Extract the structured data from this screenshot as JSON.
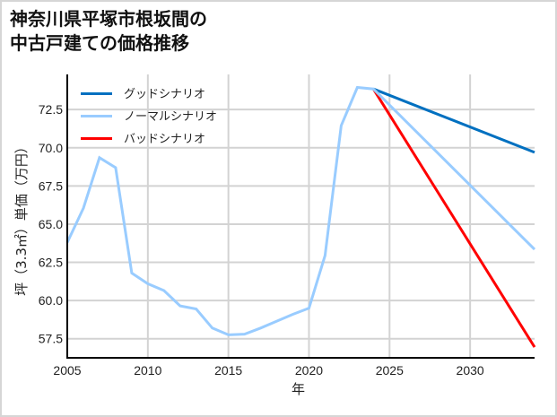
{
  "figure": {
    "title_lines": [
      "神奈川県平塚市根坂間の",
      "中古戸建ての価格推移"
    ]
  },
  "chart_data": {
    "type": "line",
    "title": "神奈川県平塚市根坂間の中古戸建ての価格推移",
    "xlabel": "年",
    "ylabel": "坪（3.3㎡）単価（万円）",
    "xlim": [
      2005,
      2034
    ],
    "ylim": [
      56.25,
      74.8
    ],
    "x_ticks": [
      2005,
      2010,
      2015,
      2020,
      2025,
      2030
    ],
    "x_tick_labels": [
      "2005",
      "2010",
      "2015",
      "2020",
      "2025",
      "2030"
    ],
    "y_ticks": [
      57.5,
      60.0,
      62.5,
      65.0,
      67.5,
      70.0,
      72.5
    ],
    "y_tick_labels": [
      "57.5",
      "60.0",
      "62.5",
      "65.0",
      "67.5",
      "70.0",
      "72.5"
    ],
    "grid": true,
    "legend_position": "upper left",
    "series": [
      {
        "name": "グッドシナリオ",
        "color": "#0070c0",
        "x": [
          2024,
          2034
        ],
        "values": [
          73.85,
          69.7
        ]
      },
      {
        "name": "ノーマルシナリオ",
        "color": "#99ccff",
        "x": [
          2005,
          2006,
          2007,
          2008,
          2009,
          2010,
          2011,
          2012,
          2013,
          2014,
          2015,
          2016,
          2017,
          2018,
          2019,
          2020,
          2021,
          2022,
          2023,
          2024,
          2034
        ],
        "values": [
          63.8,
          66.05,
          69.35,
          68.7,
          61.8,
          61.1,
          60.65,
          59.65,
          59.45,
          58.2,
          57.75,
          57.8,
          58.2,
          58.65,
          59.1,
          59.5,
          62.95,
          71.45,
          73.95,
          73.85,
          63.35
        ]
      },
      {
        "name": "バッドシナリオ",
        "color": "#ff0000",
        "x": [
          2024,
          2034
        ],
        "values": [
          73.85,
          56.95
        ]
      }
    ]
  },
  "legend": {
    "items": [
      {
        "label": "グッドシナリオ",
        "color": "#0070c0"
      },
      {
        "label": "ノーマルシナリオ",
        "color": "#99ccff"
      },
      {
        "label": "バッドシナリオ",
        "color": "#ff0000"
      }
    ]
  }
}
